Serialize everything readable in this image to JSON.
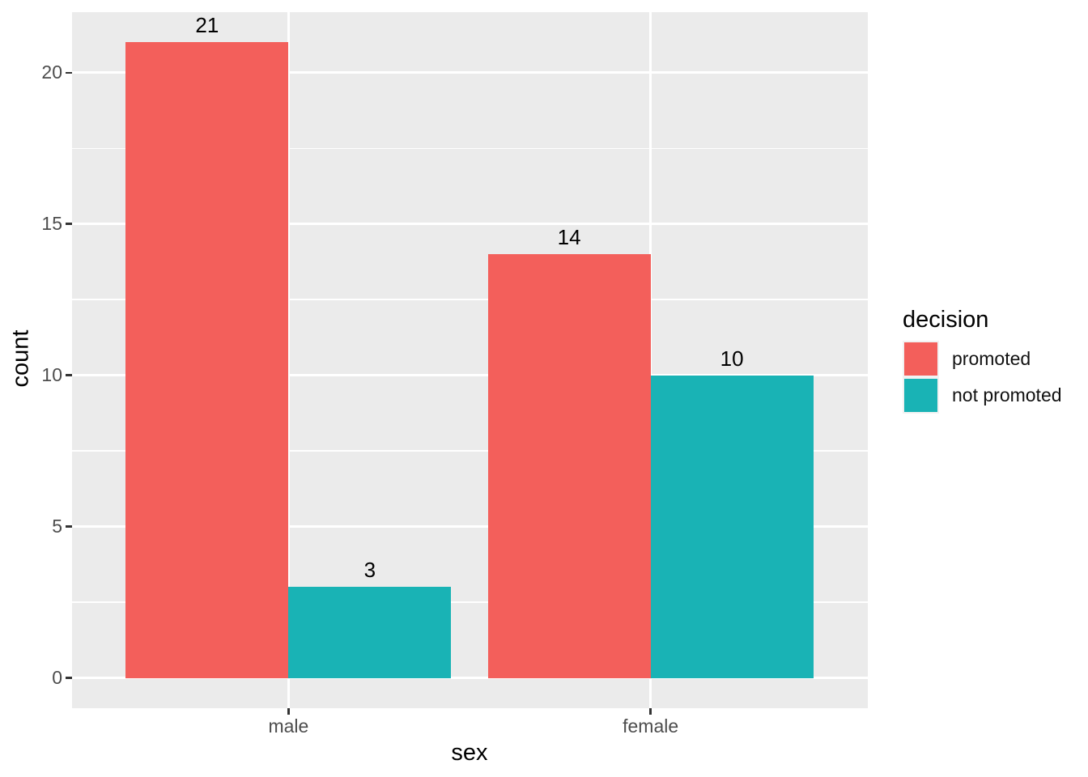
{
  "chart_data": {
    "type": "bar",
    "title": "",
    "xlabel": "sex",
    "ylabel": "count",
    "categories": [
      "male",
      "female"
    ],
    "series": [
      {
        "name": "promoted",
        "color": "#F35F5B",
        "values": [
          21,
          14
        ]
      },
      {
        "name": "not promoted",
        "color": "#19B3B5",
        "values": [
          3,
          10
        ]
      }
    ],
    "legend_title": "decision",
    "legend_position": "right",
    "bar_value_labels_shown": true,
    "y_ticks": [
      0,
      5,
      10,
      15,
      20
    ],
    "y_minor_ticks": [
      2.5,
      7.5,
      12.5,
      17.5
    ],
    "ylim": [
      -1,
      22
    ],
    "grid": "major-and-minor",
    "colors": {
      "panel_bg": "#EBEBEB",
      "grid": "#FFFFFF",
      "tick_mark": "#333333",
      "axis_text": "#4D4D4D",
      "axis_title": "#000000",
      "bar_label": "#000000",
      "legend_key_bg": "#F2F2F2"
    }
  }
}
